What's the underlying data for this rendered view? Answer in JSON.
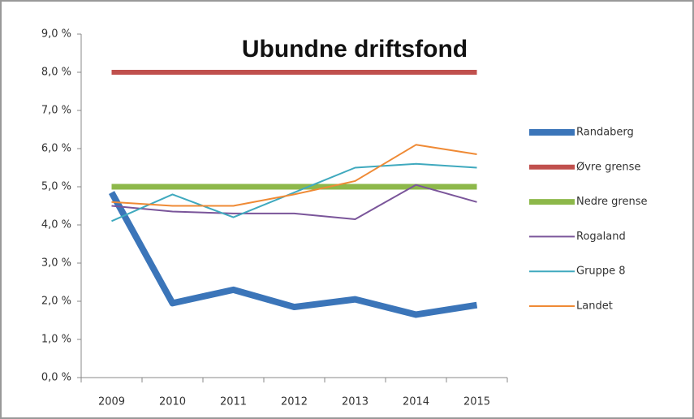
{
  "chart_data": {
    "type": "line",
    "title": "Ubundne driftsfond",
    "categories": [
      "2009",
      "2010",
      "2011",
      "2012",
      "2013",
      "2014",
      "2015"
    ],
    "series": [
      {
        "name": "Randaberg",
        "color": "#3b75b9",
        "width": 8,
        "values": [
          4.85,
          1.95,
          2.3,
          1.85,
          2.05,
          1.65,
          1.9
        ]
      },
      {
        "name": "Øvre grense",
        "color": "#c0504d",
        "width": 6,
        "values": [
          8,
          8,
          8,
          8,
          8,
          8,
          8
        ]
      },
      {
        "name": "Nedre grense",
        "color": "#8db84a",
        "width": 7,
        "values": [
          5,
          5,
          5,
          5,
          5,
          5,
          5
        ]
      },
      {
        "name": "Rogaland",
        "color": "#7a559a",
        "width": 2,
        "values": [
          4.5,
          4.35,
          4.3,
          4.3,
          4.15,
          5.05,
          4.6
        ]
      },
      {
        "name": "Gruppe 8",
        "color": "#3fa9be",
        "width": 2,
        "values": [
          4.1,
          4.8,
          4.2,
          4.85,
          5.5,
          5.6,
          5.5
        ]
      },
      {
        "name": "Landet",
        "color": "#ef8a35",
        "width": 2,
        "values": [
          4.6,
          4.5,
          4.5,
          4.8,
          5.15,
          6.1,
          5.85
        ]
      }
    ],
    "ylim": [
      0,
      9
    ],
    "yticks": [
      {
        "value": 0,
        "label": "0,0 %"
      },
      {
        "value": 1,
        "label": "1,0 %"
      },
      {
        "value": 2,
        "label": "2,0 %"
      },
      {
        "value": 3,
        "label": "3,0 %"
      },
      {
        "value": 4,
        "label": "4,0 %"
      },
      {
        "value": 5,
        "label": "5,0 %"
      },
      {
        "value": 6,
        "label": "6,0 %"
      },
      {
        "value": 7,
        "label": "7,0 %"
      },
      {
        "value": 8,
        "label": "8,0 %"
      },
      {
        "value": 9,
        "label": "9,0 %"
      }
    ],
    "grid": false,
    "legend": "right"
  }
}
